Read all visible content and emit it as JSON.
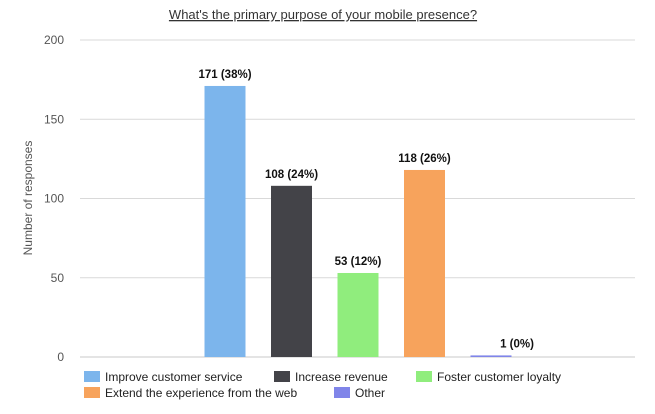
{
  "chart_data": {
    "type": "bar",
    "title": "What's the primary purpose of your mobile presence?",
    "ylabel": "Number of responses",
    "xlabel": "",
    "ylim": [
      0,
      200
    ],
    "yticks": [
      0,
      50,
      100,
      150,
      200
    ],
    "grid": true,
    "legend_position": "bottom-left",
    "series": [
      {
        "name": "Improve customer service",
        "value": 171,
        "label": "171 (38%)",
        "color": "#7cb5ec"
      },
      {
        "name": "Increase revenue",
        "value": 108,
        "label": "108 (24%)",
        "color": "#434348"
      },
      {
        "name": "Foster customer loyalty",
        "value": 53,
        "label": "53 (12%)",
        "color": "#90ed7d"
      },
      {
        "name": "Extend the experience from the web",
        "value": 118,
        "label": "118 (26%)",
        "color": "#f7a35c"
      },
      {
        "name": "Other",
        "value": 1,
        "label": "1 (0%)",
        "color": "#8085e9"
      }
    ]
  }
}
